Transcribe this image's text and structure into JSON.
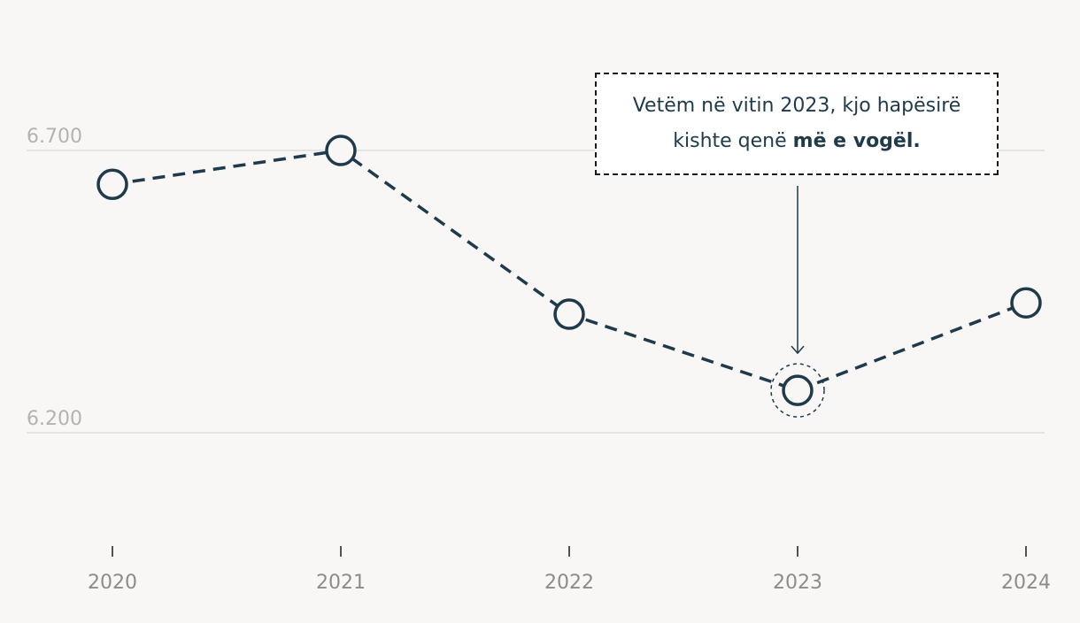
{
  "chart_data": {
    "type": "line",
    "x": [
      "2020",
      "2021",
      "2022",
      "2023",
      "2024"
    ],
    "series": [
      {
        "values": [
          6640,
          6700,
          6410,
          6275,
          6430
        ]
      }
    ],
    "ylim": [
      6200,
      6700
    ],
    "yticks": [
      "6.700",
      "6.200"
    ],
    "grid": true,
    "legend": "none",
    "annotation": {
      "target": "2023",
      "text_before": "Vetëm në vitin 2023, kjo hapësirë kishte qenë ",
      "text_bold": "më e vogël."
    }
  },
  "colors": {
    "line": "#1f3a4a",
    "grid": "#dddddd",
    "background": "#f8f7f5"
  }
}
